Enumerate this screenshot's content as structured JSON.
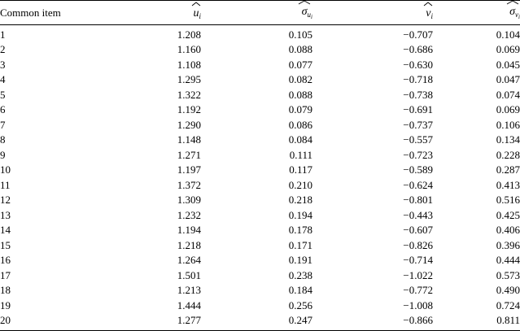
{
  "table": {
    "headers": {
      "item": "Common item",
      "u_base": "u",
      "u_sub": "i",
      "sigma_u_base": "σ",
      "sigma_u_sub": "u",
      "sigma_u_subsub": "i",
      "v_base": "v",
      "v_sub": "i",
      "sigma_v_base": "σ",
      "sigma_v_sub": "v",
      "sigma_v_subsub": "i"
    },
    "rows": [
      {
        "item": "1",
        "u": "1.208",
        "su": "0.105",
        "v": "−0.707",
        "sv": "0.104"
      },
      {
        "item": "2",
        "u": "1.160",
        "su": "0.088",
        "v": "−0.686",
        "sv": "0.069"
      },
      {
        "item": "3",
        "u": "1.108",
        "su": "0.077",
        "v": "−0.630",
        "sv": "0.045"
      },
      {
        "item": "4",
        "u": "1.295",
        "su": "0.082",
        "v": "−0.718",
        "sv": "0.047"
      },
      {
        "item": "5",
        "u": "1.322",
        "su": "0.088",
        "v": "−0.738",
        "sv": "0.074"
      },
      {
        "item": "6",
        "u": "1.192",
        "su": "0.079",
        "v": "−0.691",
        "sv": "0.069"
      },
      {
        "item": "7",
        "u": "1.290",
        "su": "0.086",
        "v": "−0.737",
        "sv": "0.106"
      },
      {
        "item": "8",
        "u": "1.148",
        "su": "0.084",
        "v": "−0.557",
        "sv": "0.134"
      },
      {
        "item": "9",
        "u": "1.271",
        "su": "0.111",
        "v": "−0.723",
        "sv": "0.228"
      },
      {
        "item": "10",
        "u": "1.197",
        "su": "0.117",
        "v": "−0.589",
        "sv": "0.287"
      },
      {
        "item": "11",
        "u": "1.372",
        "su": "0.210",
        "v": "−0.624",
        "sv": "0.413"
      },
      {
        "item": "12",
        "u": "1.309",
        "su": "0.218",
        "v": "−0.801",
        "sv": "0.516"
      },
      {
        "item": "13",
        "u": "1.232",
        "su": "0.194",
        "v": "−0.443",
        "sv": "0.425"
      },
      {
        "item": "14",
        "u": "1.194",
        "su": "0.178",
        "v": "−0.607",
        "sv": "0.406"
      },
      {
        "item": "15",
        "u": "1.218",
        "su": "0.171",
        "v": "−0.826",
        "sv": "0.396"
      },
      {
        "item": "16",
        "u": "1.264",
        "su": "0.191",
        "v": "−0.714",
        "sv": "0.444"
      },
      {
        "item": "17",
        "u": "1.501",
        "su": "0.238",
        "v": "−1.022",
        "sv": "0.573"
      },
      {
        "item": "18",
        "u": "1.213",
        "su": "0.184",
        "v": "−0.772",
        "sv": "0.490"
      },
      {
        "item": "19",
        "u": "1.444",
        "su": "0.256",
        "v": "−1.008",
        "sv": "0.724"
      },
      {
        "item": "20",
        "u": "1.277",
        "su": "0.247",
        "v": "−0.866",
        "sv": "0.811"
      }
    ]
  }
}
